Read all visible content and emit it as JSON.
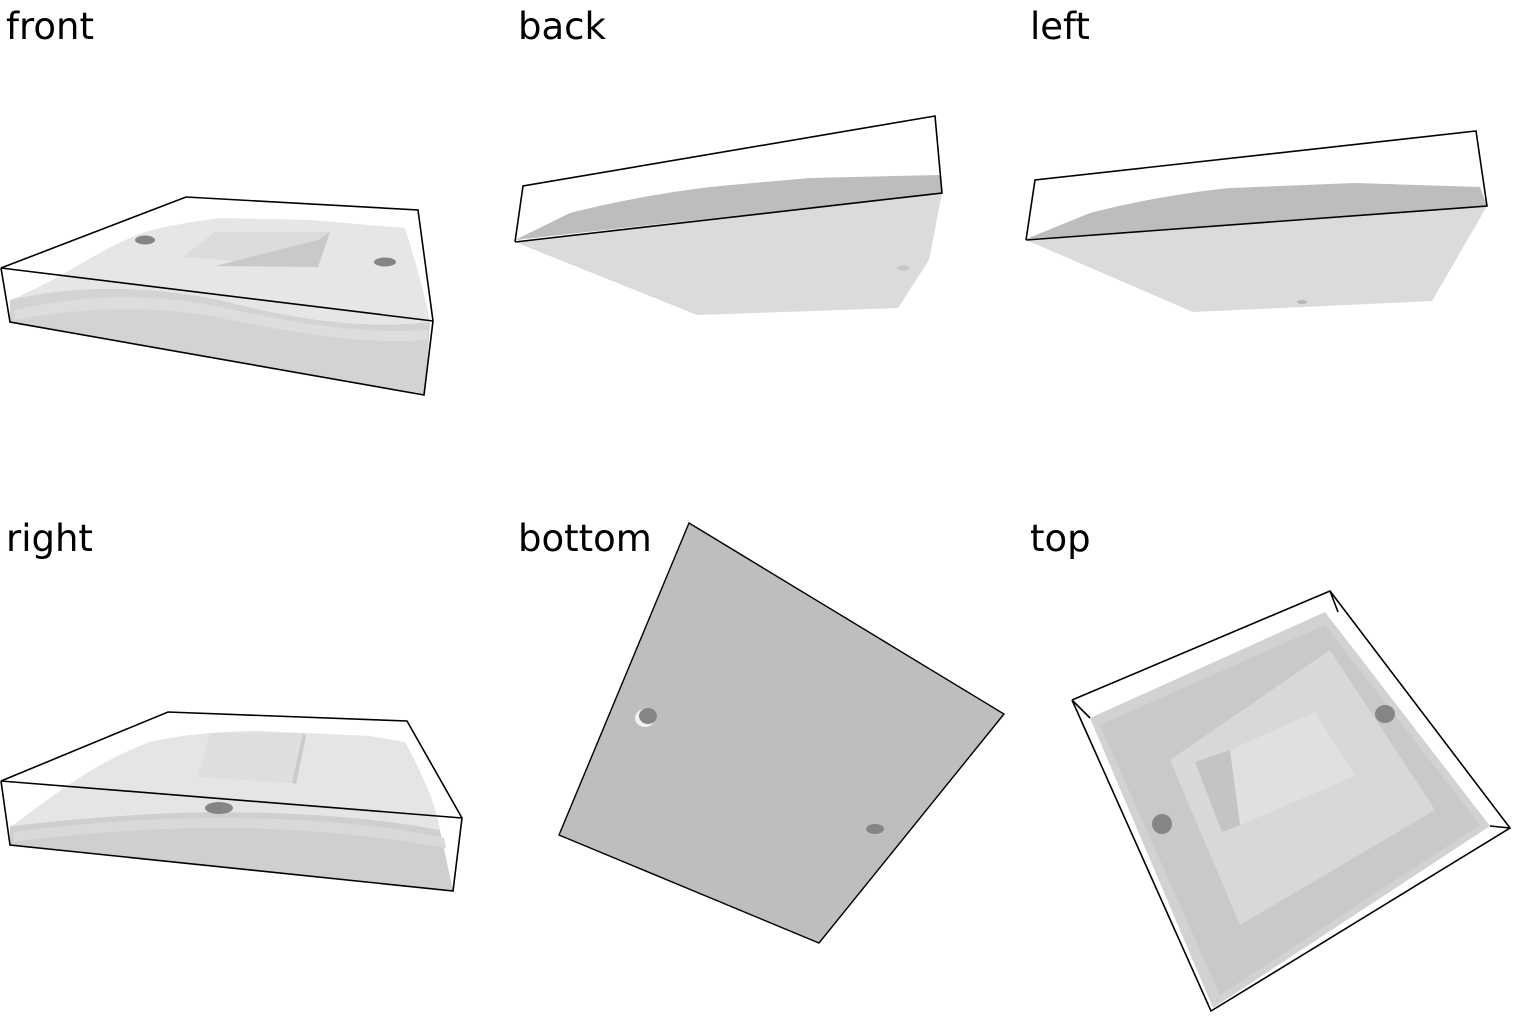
{
  "views": [
    {
      "key": "front",
      "label": "front"
    },
    {
      "key": "back",
      "label": "back"
    },
    {
      "key": "left",
      "label": "left"
    },
    {
      "key": "right",
      "label": "right"
    },
    {
      "key": "bottom",
      "label": "bottom"
    },
    {
      "key": "top",
      "label": "top"
    }
  ],
  "colors": {
    "surface_light": "#e9e8ea",
    "surface_mid": "#d9d8db",
    "surface_dark": "#bdbcbf",
    "base_face": "#c2c1c4",
    "hole": "#858487",
    "outline": "#000000",
    "background": "#ffffff"
  }
}
